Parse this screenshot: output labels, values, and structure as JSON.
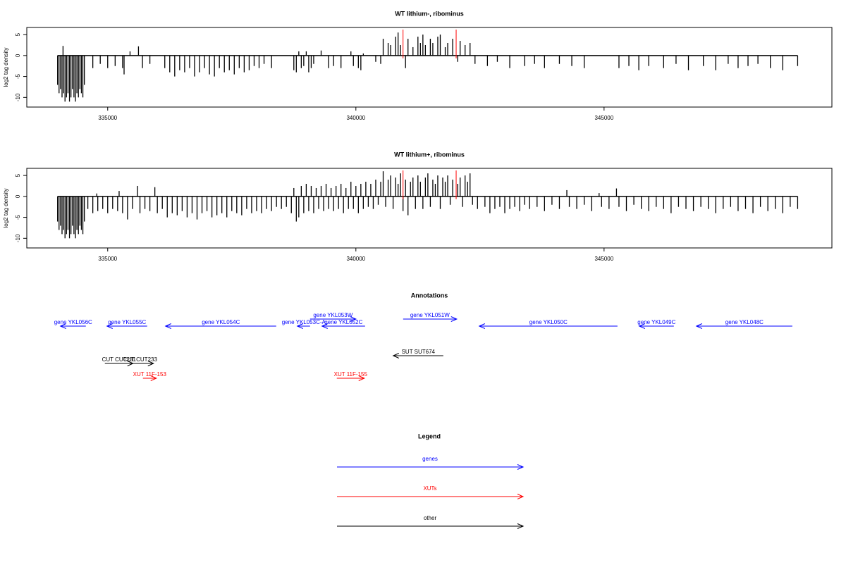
{
  "chart_data": [
    {
      "type": "bar",
      "title": "WT lithium-, ribominus",
      "y_label": "log2 tag density",
      "color": "#000000",
      "xlim": [
        333370,
        349590
      ],
      "ylim": [
        -12.3,
        6.7
      ],
      "xticks": [
        335000,
        340000,
        345000
      ],
      "yticks": [
        5,
        0,
        -5,
        -10
      ],
      "markers": [
        340950,
        342020
      ],
      "marker_color": "#ff0000",
      "x": [
        333990,
        334020,
        334050,
        334080,
        334100,
        334110,
        334140,
        334170,
        334200,
        334230,
        334260,
        334290,
        334320,
        334350,
        334380,
        334410,
        334440,
        334470,
        334500,
        334530,
        334700,
        334850,
        335000,
        335150,
        335300,
        335330,
        335450,
        335620,
        335700,
        335850,
        336150,
        336250,
        336350,
        336450,
        336550,
        336650,
        336750,
        336850,
        336950,
        337050,
        337150,
        337250,
        337350,
        337450,
        337550,
        337650,
        337750,
        337850,
        337950,
        338050,
        338150,
        338300,
        338750,
        338800,
        338850,
        338900,
        338950,
        339000,
        339050,
        339100,
        339150,
        339300,
        339450,
        339550,
        339700,
        339900,
        339950,
        340050,
        340100,
        340150,
        340400,
        340500,
        340550,
        340650,
        340700,
        340800,
        340850,
        340900,
        341000,
        341050,
        341150,
        341250,
        341300,
        341350,
        341400,
        341500,
        341550,
        341650,
        341700,
        341800,
        341850,
        341950,
        342050,
        342100,
        342200,
        342300,
        342400,
        342650,
        342850,
        343100,
        343400,
        343600,
        343800,
        344100,
        344350,
        344600,
        345300,
        345500,
        345700,
        345900,
        346200,
        346450,
        346700,
        347000,
        347250,
        347500,
        347700,
        347900,
        348100,
        348350,
        348600,
        348900
      ],
      "values": [
        -7,
        -9,
        -8,
        -10,
        2.3,
        -9,
        -11,
        -10,
        -9,
        -11,
        -10,
        -8,
        -10,
        -11,
        -9,
        -10,
        -8,
        -9,
        -10,
        -7,
        -3,
        -2,
        -3,
        -2.5,
        -3,
        -4.5,
        1,
        2.2,
        -3,
        -2,
        -3,
        -4,
        -5,
        -3.5,
        -4,
        -3,
        -5,
        -4,
        -3,
        -4.5,
        -5,
        -3,
        -4,
        -3.5,
        -4.5,
        -3,
        -4,
        -3.5,
        -2.5,
        -3,
        -2,
        -3,
        -3.5,
        -4,
        1,
        -3,
        -2.5,
        1,
        -4,
        -3,
        -2,
        1.2,
        -3,
        -2.5,
        -3,
        1,
        -2.5,
        -3,
        -3.5,
        0.5,
        -1.5,
        -2,
        4,
        3,
        2.5,
        4.5,
        5.5,
        2.5,
        -3,
        4,
        2,
        4.5,
        3,
        5,
        2.5,
        4,
        3,
        4.5,
        5,
        2,
        3,
        4,
        -1.5,
        3.5,
        2.5,
        3,
        -2,
        -2.5,
        -1.5,
        -3,
        -2.5,
        -2,
        -3,
        -2,
        -2.5,
        -3,
        -3,
        -2.5,
        -3.5,
        -2.5,
        -3,
        -2,
        -3.5,
        -2.5,
        -3.5,
        -2,
        -3,
        -2.5,
        -2,
        -3,
        -3.5,
        -2.5
      ]
    },
    {
      "type": "bar",
      "title": "WT lithium+, ribominus",
      "y_label": "log2 tag density",
      "color": "#000000",
      "xlim": [
        333370,
        349590
      ],
      "ylim": [
        -12.3,
        6.7
      ],
      "xticks": [
        335000,
        340000,
        345000
      ],
      "yticks": [
        5,
        0,
        -5,
        -10
      ],
      "markers": [
        340950,
        342020
      ],
      "marker_color": "#ff0000",
      "x": [
        333990,
        334020,
        334050,
        334080,
        334110,
        334140,
        334170,
        334200,
        334230,
        334260,
        334290,
        334320,
        334350,
        334380,
        334410,
        334440,
        334470,
        334500,
        334530,
        334600,
        334700,
        334780,
        334800,
        334900,
        335000,
        335100,
        335200,
        335230,
        335300,
        335400,
        335500,
        335600,
        335650,
        335750,
        335850,
        335950,
        336000,
        336100,
        336200,
        336300,
        336400,
        336500,
        336600,
        336700,
        336800,
        336900,
        337000,
        337100,
        337200,
        337300,
        337400,
        337500,
        337600,
        337700,
        337800,
        337900,
        338000,
        338100,
        338200,
        338300,
        338400,
        338500,
        338600,
        338700,
        338750,
        338800,
        338850,
        338900,
        338950,
        339000,
        339050,
        339100,
        339150,
        339200,
        339250,
        339300,
        339350,
        339400,
        339450,
        339500,
        339550,
        339600,
        339650,
        339700,
        339750,
        339800,
        339850,
        339900,
        339950,
        340000,
        340050,
        340100,
        340150,
        340200,
        340250,
        340300,
        340350,
        340400,
        340450,
        340500,
        340550,
        340600,
        340650,
        340700,
        340750,
        340800,
        340850,
        340900,
        340950,
        341000,
        341050,
        341100,
        341150,
        341200,
        341250,
        341300,
        341350,
        341400,
        341450,
        341500,
        341550,
        341600,
        341650,
        341700,
        341750,
        341800,
        341850,
        341900,
        341950,
        342050,
        342100,
        342150,
        342200,
        342250,
        342300,
        342350,
        342450,
        342600,
        342700,
        342800,
        342900,
        343000,
        343100,
        343200,
        343300,
        343400,
        343500,
        343650,
        343800,
        343950,
        344100,
        344250,
        344300,
        344450,
        344600,
        344750,
        344900,
        344950,
        345100,
        345250,
        345300,
        345450,
        345600,
        345750,
        345900,
        346050,
        346200,
        346350,
        346500,
        346650,
        346800,
        346950,
        347100,
        347250,
        347400,
        347550,
        347700,
        347850,
        348000,
        348150,
        348300,
        348450,
        348600,
        348750,
        348900
      ],
      "values": [
        -6,
        -8,
        -7,
        -9,
        -8,
        -10,
        -9,
        -8,
        -10,
        -9,
        -7,
        -9,
        -10,
        -8,
        -9,
        -7,
        -8,
        -9,
        -6,
        -3,
        -4,
        0.7,
        -3.5,
        -3,
        -4,
        -3,
        -3.5,
        1.3,
        -4,
        -5.5,
        -3,
        2.5,
        -4,
        -3,
        -3.5,
        2.2,
        -4,
        -3,
        -5,
        -4,
        -4.5,
        -3.5,
        -5,
        -4,
        -5.5,
        -4,
        -3.5,
        -5,
        -4.5,
        -4,
        -5,
        -3.5,
        -4,
        -4.5,
        -3,
        -4,
        -3.5,
        -4,
        -3,
        -3.5,
        -2.5,
        -3,
        -2.5,
        -4,
        2,
        -6,
        -5,
        2.5,
        -4,
        3,
        -3.5,
        2.5,
        -4,
        2,
        -3,
        2.5,
        -3.5,
        3,
        -3,
        2,
        -3.5,
        2.5,
        -3,
        3,
        -4,
        2,
        -3,
        3.5,
        -3,
        2.5,
        -4,
        3,
        -3,
        3.5,
        -2.5,
        3,
        -3,
        4,
        -2,
        3.5,
        6,
        -2.5,
        4,
        5,
        -3,
        4.5,
        3,
        5.5,
        -3.5,
        4,
        -4.5,
        3.5,
        4.5,
        -3,
        5,
        3.5,
        -3,
        4.5,
        5.5,
        -2.5,
        4,
        3,
        5,
        -3,
        4.5,
        3.5,
        5,
        -2,
        4,
        3,
        4.5,
        -2.5,
        5,
        3.5,
        5.5,
        -2,
        -3,
        -2.5,
        -4,
        -3,
        -2.5,
        -4,
        -3,
        -2.5,
        -3.5,
        -2,
        -3,
        -2.5,
        -3.5,
        -2,
        -3,
        1.5,
        -2.5,
        -3,
        -2,
        -3.5,
        0.8,
        -2.5,
        -3,
        1.9,
        -2.5,
        -3.5,
        -2,
        -3,
        -3.5,
        -2.5,
        -3,
        -4,
        -2.5,
        -3,
        -3.5,
        -2.5,
        -3,
        -4,
        -3,
        -2.5,
        -3.5,
        -3,
        -4,
        -2.5,
        -3.5,
        -3,
        -4,
        -2.5,
        -3
      ]
    },
    {
      "type": "annotation",
      "title": "Annotations",
      "xlim": [
        333370,
        349590
      ],
      "tracks": [
        {
          "color": "#0000ff",
          "features": [
            {
              "label": "gene YKL056C",
              "from": 334560,
              "to": 334048
            },
            {
              "label": "gene YKL055C",
              "from": 335795,
              "to": 334986
            },
            {
              "label": "gene YKL054C",
              "from": 338395,
              "to": 336165
            },
            {
              "label": "gene YKL053C-A",
              "from": 339077,
              "to": 338821
            },
            {
              "label": "gene YKL052C",
              "from": 340185,
              "to": 339318
            },
            {
              "label": "gene YKL053W",
              "from": 339077,
              "to": 340000
            },
            {
              "label": "gene YKL051W",
              "from": 340952,
              "to": 342031
            },
            {
              "label": "gene YKL050C",
              "from": 345270,
              "to": 342486
            },
            {
              "label": "gene YKL049C",
              "from": 346406,
              "to": 345710
            },
            {
              "label": "gene YKL048C",
              "from": 348793,
              "to": 346861
            }
          ]
        },
        {
          "color": "#000000",
          "features": [
            {
              "label": "SUT SUT674",
              "from": 341761,
              "to": 340753
            }
          ]
        },
        {
          "color": "#000000",
          "features": [
            {
              "label": "CUT CUT231",
              "from": 334943,
              "to": 335511
            },
            {
              "label": "CUT CUT233",
              "from": 335384,
              "to": 335923
            }
          ]
        },
        {
          "color": "#ff0000",
          "features": [
            {
              "label": "XUT 11F-153",
              "from": 335710,
              "to": 335980
            },
            {
              "label": "XUT 11F-155",
              "from": 339616,
              "to": 340170
            }
          ]
        }
      ],
      "legend": {
        "title": "Legend",
        "entries": [
          {
            "name": "genes",
            "color": "#0000ff"
          },
          {
            "name": "XUTs",
            "color": "#ff0000"
          },
          {
            "name": "other",
            "color": "#000000"
          }
        ]
      }
    }
  ]
}
